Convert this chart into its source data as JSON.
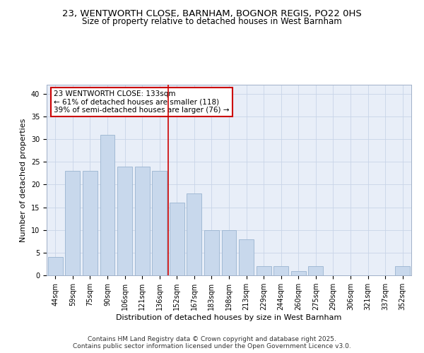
{
  "title_line1": "23, WENTWORTH CLOSE, BARNHAM, BOGNOR REGIS, PO22 0HS",
  "title_line2": "Size of property relative to detached houses in West Barnham",
  "xlabel": "Distribution of detached houses by size in West Barnham",
  "ylabel": "Number of detached properties",
  "categories": [
    "44sqm",
    "59sqm",
    "75sqm",
    "90sqm",
    "106sqm",
    "121sqm",
    "136sqm",
    "152sqm",
    "167sqm",
    "183sqm",
    "198sqm",
    "213sqm",
    "229sqm",
    "244sqm",
    "260sqm",
    "275sqm",
    "290sqm",
    "306sqm",
    "321sqm",
    "337sqm",
    "352sqm"
  ],
  "values": [
    4,
    23,
    23,
    31,
    24,
    24,
    23,
    16,
    18,
    10,
    10,
    8,
    2,
    2,
    1,
    2,
    0,
    0,
    0,
    0,
    2
  ],
  "bar_color": "#c8d8ec",
  "bar_edge_color": "#9ab4d0",
  "vline_color": "#cc0000",
  "annotation_text": "23 WENTWORTH CLOSE: 133sqm\n← 61% of detached houses are smaller (118)\n39% of semi-detached houses are larger (76) →",
  "annotation_box_color": "#ffffff",
  "annotation_box_edge": "#cc0000",
  "ylim": [
    0,
    42
  ],
  "yticks": [
    0,
    5,
    10,
    15,
    20,
    25,
    30,
    35,
    40
  ],
  "grid_color": "#c8d4e8",
  "bg_color": "#e8eef8",
  "footer_line1": "Contains HM Land Registry data © Crown copyright and database right 2025.",
  "footer_line2": "Contains public sector information licensed under the Open Government Licence v3.0.",
  "title_fontsize": 9.5,
  "subtitle_fontsize": 8.5,
  "axis_label_fontsize": 8,
  "tick_fontsize": 7,
  "annotation_fontsize": 7.5,
  "footer_fontsize": 6.5
}
